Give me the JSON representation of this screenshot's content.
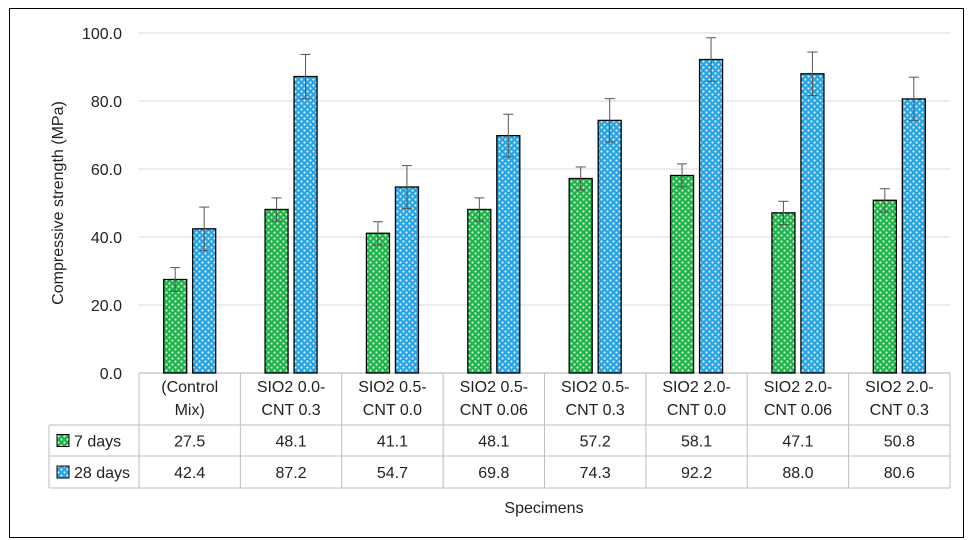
{
  "chart_data": {
    "type": "bar",
    "title": "",
    "xlabel": "Specimens",
    "ylabel": "Compressive strength (MPa)",
    "ylim": [
      0,
      100
    ],
    "yticks": [
      "0.0",
      "20.0",
      "40.0",
      "60.0",
      "80.0",
      "100.0"
    ],
    "grid": true,
    "legend": "data-table",
    "categories": [
      [
        "(Control",
        "Mix)"
      ],
      [
        "SIO2 0.0-",
        "CNT 0.3"
      ],
      [
        "SIO2 0.5-",
        "CNT 0.0"
      ],
      [
        "SIO2 0.5-",
        "CNT 0.06"
      ],
      [
        "SIO2 0.5-",
        "CNT 0.3"
      ],
      [
        "SIO2 2.0-",
        "CNT 0.0"
      ],
      [
        "SIO2 2.0-",
        "CNT 0.06"
      ],
      [
        "SIO2 2.0-",
        "CNT 0.3"
      ]
    ],
    "series": [
      {
        "name": "7 days",
        "color": "#1fb24a",
        "values": [
          27.5,
          48.1,
          41.1,
          48.1,
          57.2,
          58.1,
          47.1,
          50.8
        ],
        "labels": [
          "27.5",
          "48.1",
          "41.1",
          "48.1",
          "57.2",
          "58.1",
          "47.1",
          "50.8"
        ],
        "errors": [
          3.5,
          3.4,
          3.4,
          3.4,
          3.4,
          3.4,
          3.4,
          3.4
        ]
      },
      {
        "name": "28 days",
        "color": "#29a3e0",
        "values": [
          42.4,
          87.2,
          54.7,
          69.8,
          74.3,
          92.2,
          88.0,
          80.6
        ],
        "labels": [
          "42.4",
          "87.2",
          "54.7",
          "69.8",
          "74.3",
          "92.2",
          "88.0",
          "80.6"
        ],
        "errors": [
          6.4,
          6.5,
          6.3,
          6.3,
          6.4,
          6.4,
          6.4,
          6.4
        ]
      }
    ]
  }
}
